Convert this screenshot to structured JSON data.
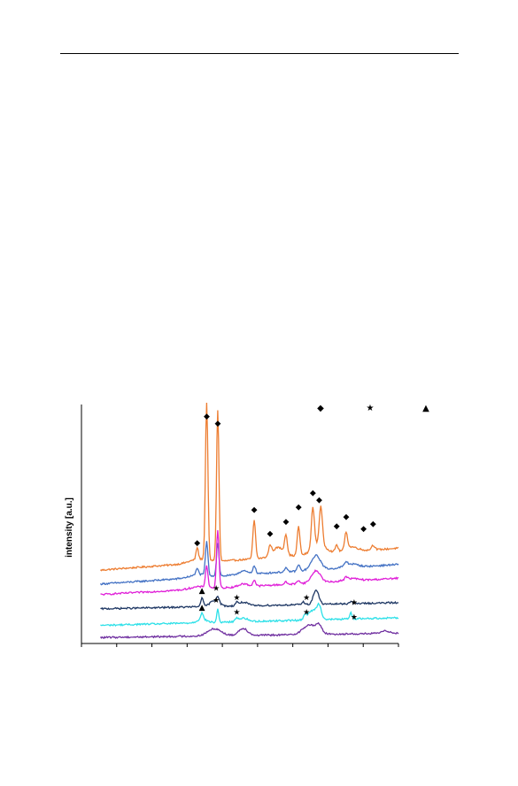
{
  "page": {
    "has_top_rule": true
  },
  "chart_data": {
    "type": "line",
    "title": "",
    "xlabel": "",
    "ylabel": "intensity [a.u.]",
    "grid": false,
    "legend": {
      "placement": "top-right",
      "entries": [
        {
          "marker": "diamond",
          "glyph": "◆",
          "label": ""
        },
        {
          "marker": "star",
          "glyph": "★",
          "label": ""
        },
        {
          "marker": "triangle",
          "glyph": "▲",
          "label": ""
        }
      ]
    },
    "xlim": [
      0,
      100
    ],
    "ylim": [
      0,
      100
    ],
    "series": [
      {
        "color": "#ED7D31",
        "baseline": 30.7,
        "slope": 9.2,
        "bumps": [
          [
            37,
            1.6,
            4
          ],
          [
            62,
            4,
            2.5
          ],
          [
            75,
            4,
            3
          ],
          [
            85,
            2,
            3
          ]
        ],
        "peaks": [
          [
            36.5,
            5,
            0.5
          ],
          [
            39.5,
            66,
            0.55
          ],
          [
            43,
            63,
            0.55
          ],
          [
            54.5,
            16,
            0.6
          ],
          [
            59.5,
            4,
            0.6
          ],
          [
            64.5,
            8,
            0.6
          ],
          [
            68.5,
            12,
            0.6
          ],
          [
            73,
            17,
            0.7
          ],
          [
            75.5,
            16,
            0.7
          ],
          [
            80.5,
            3,
            0.6
          ],
          [
            83.5,
            7,
            0.6
          ],
          [
            92,
            2,
            0.8
          ]
        ]
      },
      {
        "color": "#4472C4",
        "baseline": 24.9,
        "slope": 8.2,
        "bumps": [
          [
            37,
            1.2,
            4
          ],
          [
            51,
            1.5,
            2
          ],
          [
            74,
            6,
            2
          ],
          [
            85,
            1.5,
            3
          ]
        ],
        "peaks": [
          [
            36.5,
            3,
            0.5
          ],
          [
            39.5,
            14,
            0.55
          ],
          [
            43,
            14,
            0.55
          ],
          [
            54.5,
            3.5,
            0.6
          ],
          [
            64.5,
            1.5,
            0.6
          ],
          [
            68.5,
            2.5,
            0.6
          ],
          [
            83.5,
            1.5,
            0.6
          ]
        ]
      },
      {
        "color": "#E020D8",
        "baseline": 20.5,
        "slope": 6.8,
        "bumps": [
          [
            37,
            1,
            4
          ],
          [
            51,
            1.2,
            2
          ],
          [
            74,
            5,
            2
          ],
          [
            85,
            1,
            3
          ]
        ],
        "peaks": [
          [
            39.5,
            9,
            0.55
          ],
          [
            43,
            24,
            0.55
          ],
          [
            54.5,
            2.5,
            0.6
          ],
          [
            64.5,
            1,
            0.6
          ],
          [
            68.5,
            1.5,
            0.6
          ],
          [
            83.5,
            1,
            0.6
          ]
        ]
      },
      {
        "color": "#1F3864",
        "baseline": 14.5,
        "slope": 2.6,
        "bumps": [
          [
            42,
            2.5,
            2
          ],
          [
            51,
            1.5,
            2
          ],
          [
            74,
            6,
            1.2
          ]
        ],
        "peaks": [
          [
            38,
            3.5,
            0.6
          ],
          [
            43,
            2.5,
            0.6
          ],
          [
            49,
            1.2,
            0.6
          ],
          [
            70,
            1.2,
            0.6
          ],
          [
            85,
            1,
            0.6
          ]
        ]
      },
      {
        "color": "#2CE0E8",
        "baseline": 7.6,
        "slope": 3.2,
        "bumps": [
          [
            38,
            1.5,
            2
          ],
          [
            51,
            1.5,
            2
          ],
          [
            73,
            4,
            2
          ],
          [
            75,
            5,
            1
          ]
        ],
        "peaks": [
          [
            38,
            2.5,
            0.6
          ],
          [
            43,
            5.5,
            0.45
          ],
          [
            49,
            1.2,
            0.6
          ],
          [
            70.5,
            2,
            0.6
          ],
          [
            85,
            2.5,
            0.5
          ]
        ]
      },
      {
        "color": "#7030A0",
        "baseline": 2.5,
        "slope": 1.8,
        "bumps": [
          [
            42,
            3,
            3
          ],
          [
            51,
            3,
            2
          ],
          [
            72,
            4,
            3
          ],
          [
            75,
            3,
            1.2
          ],
          [
            96,
            1,
            2
          ]
        ],
        "peaks": []
      }
    ],
    "annotations": [
      {
        "marker": "diamond",
        "x": 36.5,
        "y": 42
      },
      {
        "marker": "diamond",
        "x": 39.5,
        "y": 95
      },
      {
        "marker": "diamond",
        "x": 43,
        "y": 92
      },
      {
        "marker": "diamond",
        "x": 54.5,
        "y": 56
      },
      {
        "marker": "diamond",
        "x": 59.5,
        "y": 46
      },
      {
        "marker": "diamond",
        "x": 64.5,
        "y": 51
      },
      {
        "marker": "diamond",
        "x": 68.5,
        "y": 57
      },
      {
        "marker": "diamond",
        "x": 73,
        "y": 63
      },
      {
        "marker": "diamond",
        "x": 75,
        "y": 60
      },
      {
        "marker": "diamond",
        "x": 80.5,
        "y": 49
      },
      {
        "marker": "diamond",
        "x": 83.5,
        "y": 53
      },
      {
        "marker": "diamond",
        "x": 89,
        "y": 48
      },
      {
        "marker": "diamond",
        "x": 92,
        "y": 50
      },
      {
        "marker": "triangle",
        "x": 38,
        "y": 22
      },
      {
        "marker": "triangle",
        "x": 38,
        "y": 15
      },
      {
        "marker": "star",
        "x": 42.5,
        "y": 23
      },
      {
        "marker": "star",
        "x": 42.5,
        "y": 18
      },
      {
        "marker": "star",
        "x": 49,
        "y": 19
      },
      {
        "marker": "star",
        "x": 49,
        "y": 13
      },
      {
        "marker": "star",
        "x": 71,
        "y": 19
      },
      {
        "marker": "star",
        "x": 71,
        "y": 13
      },
      {
        "marker": "star",
        "x": 86,
        "y": 17
      },
      {
        "marker": "star",
        "x": 86,
        "y": 11
      }
    ]
  }
}
